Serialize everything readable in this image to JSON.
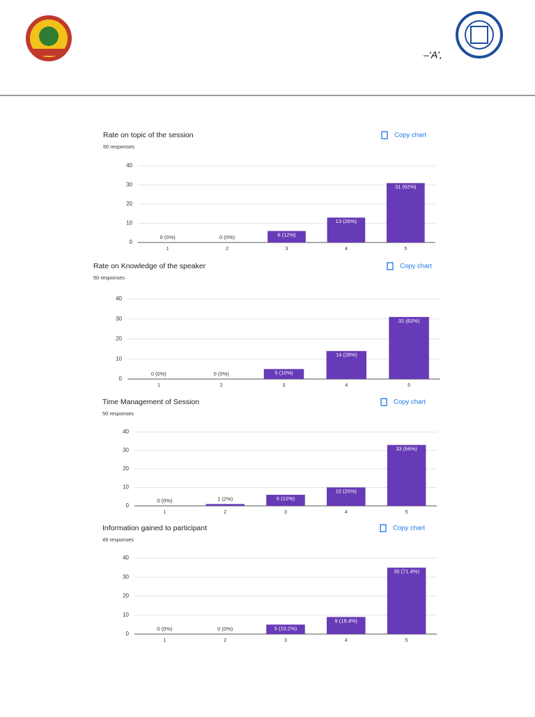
{
  "header": {
    "text": "–‘A’,"
  },
  "chart_data": [
    {
      "type": "bar",
      "title": "Rate on topic of the session",
      "subtitle": "50 responses",
      "action": "Copy chart",
      "categories": [
        "1",
        "2",
        "3",
        "4",
        "5"
      ],
      "values": [
        0,
        0,
        6,
        13,
        31
      ],
      "value_labels": [
        "0 (0%)",
        "0 (0%)",
        "6 (12%)",
        "13 (26%)",
        "31 (62%)"
      ],
      "color": "#673ab7",
      "ylim": [
        0,
        40
      ],
      "yticks": [
        0,
        10,
        20,
        30,
        40
      ],
      "grid": true
    },
    {
      "type": "bar",
      "title": "Rate on Knowledge of the speaker",
      "subtitle": "50 responses",
      "action": "Copy chart",
      "categories": [
        "1",
        "2",
        "3",
        "4",
        "5"
      ],
      "values": [
        0,
        0,
        5,
        14,
        31
      ],
      "value_labels": [
        "0 (0%)",
        "0 (0%)",
        "5 (10%)",
        "14 (28%)",
        "31 (62%)"
      ],
      "color": "#673ab7",
      "ylim": [
        0,
        40
      ],
      "yticks": [
        0,
        10,
        20,
        30,
        40
      ],
      "grid": true
    },
    {
      "type": "bar",
      "title": "Time Management of Session",
      "subtitle": "50 responses",
      "action": "Copy chart",
      "categories": [
        "1",
        "2",
        "3",
        "4",
        "5"
      ],
      "values": [
        0,
        1,
        6,
        10,
        33
      ],
      "value_labels": [
        "0 (0%)",
        "1 (2%)",
        "6 (12%)",
        "10 (20%)",
        "33 (66%)"
      ],
      "color": "#673ab7",
      "ylim": [
        0,
        40
      ],
      "yticks": [
        0,
        10,
        20,
        30,
        40
      ],
      "grid": true
    },
    {
      "type": "bar",
      "title": "Information gained to participant",
      "subtitle": "49 responses",
      "action": "Copy chart",
      "categories": [
        "1",
        "2",
        "3",
        "4",
        "5"
      ],
      "values": [
        0,
        0,
        5,
        9,
        35
      ],
      "value_labels": [
        "0 (0%)",
        "0 (0%)",
        "5 (10.2%)",
        "9 (18.4%)",
        "35 (71.4%)"
      ],
      "color": "#673ab7",
      "ylim": [
        0,
        40
      ],
      "yticks": [
        0,
        10,
        20,
        30,
        40
      ],
      "grid": true
    }
  ]
}
